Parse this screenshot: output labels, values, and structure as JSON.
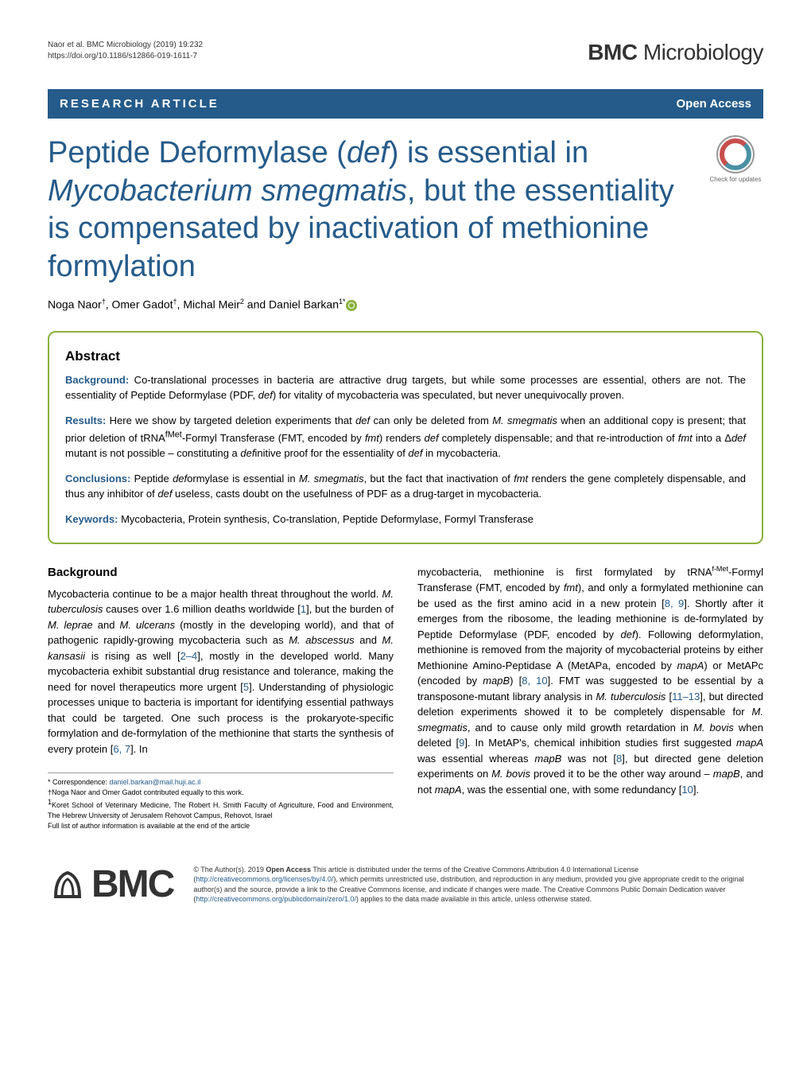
{
  "header": {
    "citation_line1": "Naor et al. BMC Microbiology          (2019) 19:232",
    "citation_line2": "https://doi.org/10.1186/s12866-019-1611-7",
    "journal_name_bold": "BMC",
    "journal_name_rest": " Microbiology"
  },
  "article_type_bar": {
    "type": "RESEARCH ARTICLE",
    "access": "Open Access"
  },
  "title": {
    "parts": [
      {
        "text": "Peptide Deformylase (",
        "italic": false
      },
      {
        "text": "def",
        "italic": true
      },
      {
        "text": ") is essential in ",
        "italic": false
      },
      {
        "text": "Mycobacterium smegmatis",
        "italic": true
      },
      {
        "text": ", but the essentiality is compensated by inactivation of methionine formylation",
        "italic": false
      }
    ]
  },
  "check_updates": {
    "label": "Check for updates"
  },
  "authors": "Noga Naor†, Omer Gadot†, Michal Meir2 and Daniel Barkan1*",
  "abstract": {
    "heading": "Abstract",
    "background_label": "Background:",
    "background_text": " Co-translational processes in bacteria are attractive drug targets, but while some processes are essential, others are not. The essentiality of Peptide Deformylase (PDF, def) for vitality of mycobacteria was speculated, but never unequivocally proven.",
    "results_label": "Results:",
    "results_text": " Here we show by targeted deletion experiments that def can only be deleted from M. smegmatis when an additional copy is present; that prior deletion of tRNAfMet-Formyl Transferase (FMT, encoded by fmt) renders def completely dispensable; and that re-introduction of fmt into a Δdef mutant is not possible – constituting a definitive proof for the essentiality of def in mycobacteria.",
    "conclusions_label": "Conclusions:",
    "conclusions_text": " Peptide deformylase is essential in M. smegmatis, but the fact that inactivation of fmt renders the gene completely dispensable, and thus any inhibitor of def useless, casts doubt on the usefulness of PDF as a drug-target in mycobacteria.",
    "keywords_label": "Keywords:",
    "keywords_text": " Mycobacteria, Protein synthesis, Co-translation, Peptide Deformylase, Formyl Transferase"
  },
  "body": {
    "background_heading": "Background",
    "col1": "Mycobacteria continue to be a major health threat throughout the world. M. tuberculosis causes over 1.6 million deaths worldwide [1], but the burden of M. leprae and M. ulcerans (mostly in the developing world), and that of pathogenic rapidly-growing mycobacteria such as M. abscessus and M. kansasii is rising as well [2–4], mostly in the developed world. Many mycobacteria exhibit substantial drug resistance and tolerance, making the need for novel therapeutics more urgent [5]. Understanding of physiologic processes unique to bacteria is important for identifying essential pathways that could be targeted. One such process is the prokaryote-specific formylation and de-formylation of the methionine that starts the synthesis of every protein [6, 7]. In",
    "col2": "mycobacteria, methionine is first formylated by tRNAf-Met-Formyl Transferase (FMT, encoded by fmt), and only a formylated methionine can be used as the first amino acid in a new protein [8, 9]. Shortly after it emerges from the ribosome, the leading methionine is de-formylated by Peptide Deformylase (PDF, encoded by def). Following deformylation, methionine is removed from the majority of mycobacterial proteins by either Methionine Amino-Peptidase A (MetAPa, encoded by mapA) or MetAPc (encoded by mapB) [8, 10]. FMT was suggested to be essential by a transposone-mutant library analysis in M. tuberculosis [11–13], but directed deletion experiments showed it to be completely dispensable for M. smegmatis, and to cause only mild growth retardation in M. bovis when deleted [9]. In MetAP's, chemical inhibition studies first suggested mapA was essential whereas mapB was not [8], but directed gene deletion experiments on M. bovis proved it to be the other way around – mapB, and not mapA, was the essential one, with some redundancy [10]."
  },
  "footnotes": {
    "correspondence": "* Correspondence: ",
    "email": "daniel.barkan@mail.huji.ac.il",
    "equal": "†Noga Naor and Omer Gadot contributed equally to this work.",
    "affiliation": "1Koret School of Veterinary Medicine, The Robert H. Smith Faculty of Agriculture, Food and Environment, The Hebrew University of Jerusalem Rehovot Campus, Rehovot, Israel",
    "full_list": "Full list of author information is available at the end of the article"
  },
  "license": {
    "text_before": "© The Author(s). 2019 ",
    "open_access": "Open Access",
    "text_main": " This article is distributed under the terms of the Creative Commons Attribution 4.0 International License (",
    "url1": "http://creativecommons.org/licenses/by/4.0/",
    "text_mid": "), which permits unrestricted use, distribution, and reproduction in any medium, provided you give appropriate credit to the original author(s) and the source, provide a link to the Creative Commons license, and indicate if changes were made. The Creative Commons Public Domain Dedication waiver (",
    "url2": "http://creativecommons.org/publicdomain/zero/1.0/",
    "text_end": ") applies to the data made available in this article, unless otherwise stated."
  },
  "colors": {
    "primary_blue": "#255b8a",
    "accent_green": "#89b13c"
  }
}
